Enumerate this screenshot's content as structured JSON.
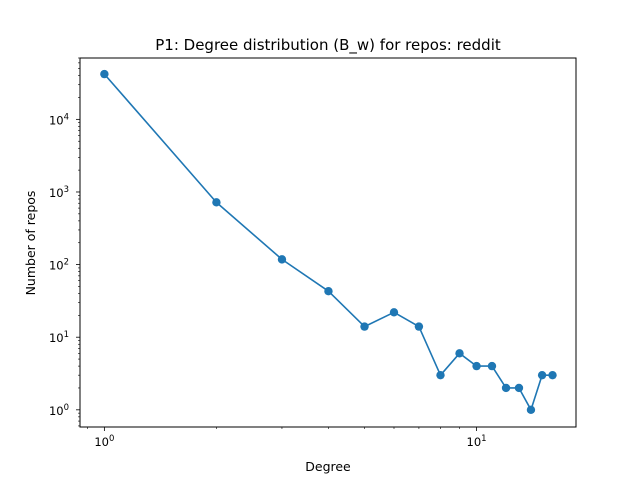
{
  "chart_data": {
    "type": "line",
    "title": "P1: Degree distribution (B_w) for repos: reddit",
    "xlabel": "Degree",
    "ylabel": "Number of repos",
    "xscale": "log",
    "yscale": "log",
    "xlim": [
      0.86,
      18.5
    ],
    "ylim": [
      0.58,
      70000
    ],
    "grid": false,
    "color": "#1f77b4",
    "marker": "circle",
    "x_ticks": [
      {
        "value": 1,
        "base": "10",
        "exp": "0"
      },
      {
        "value": 10,
        "base": "10",
        "exp": "1"
      }
    ],
    "y_ticks": [
      {
        "value": 1,
        "base": "10",
        "exp": "0"
      },
      {
        "value": 10,
        "base": "10",
        "exp": "1"
      },
      {
        "value": 100,
        "base": "10",
        "exp": "2"
      },
      {
        "value": 1000,
        "base": "10",
        "exp": "3"
      },
      {
        "value": 10000,
        "base": "10",
        "exp": "4"
      }
    ],
    "series": [
      {
        "x": [
          1,
          2,
          3,
          4,
          5,
          6,
          7,
          8,
          9,
          10,
          11,
          12,
          13,
          14,
          15,
          16
        ],
        "y": [
          42000,
          720,
          118,
          43,
          14,
          22,
          14,
          3,
          6,
          4,
          4,
          2,
          2,
          1,
          3,
          3
        ]
      }
    ]
  }
}
